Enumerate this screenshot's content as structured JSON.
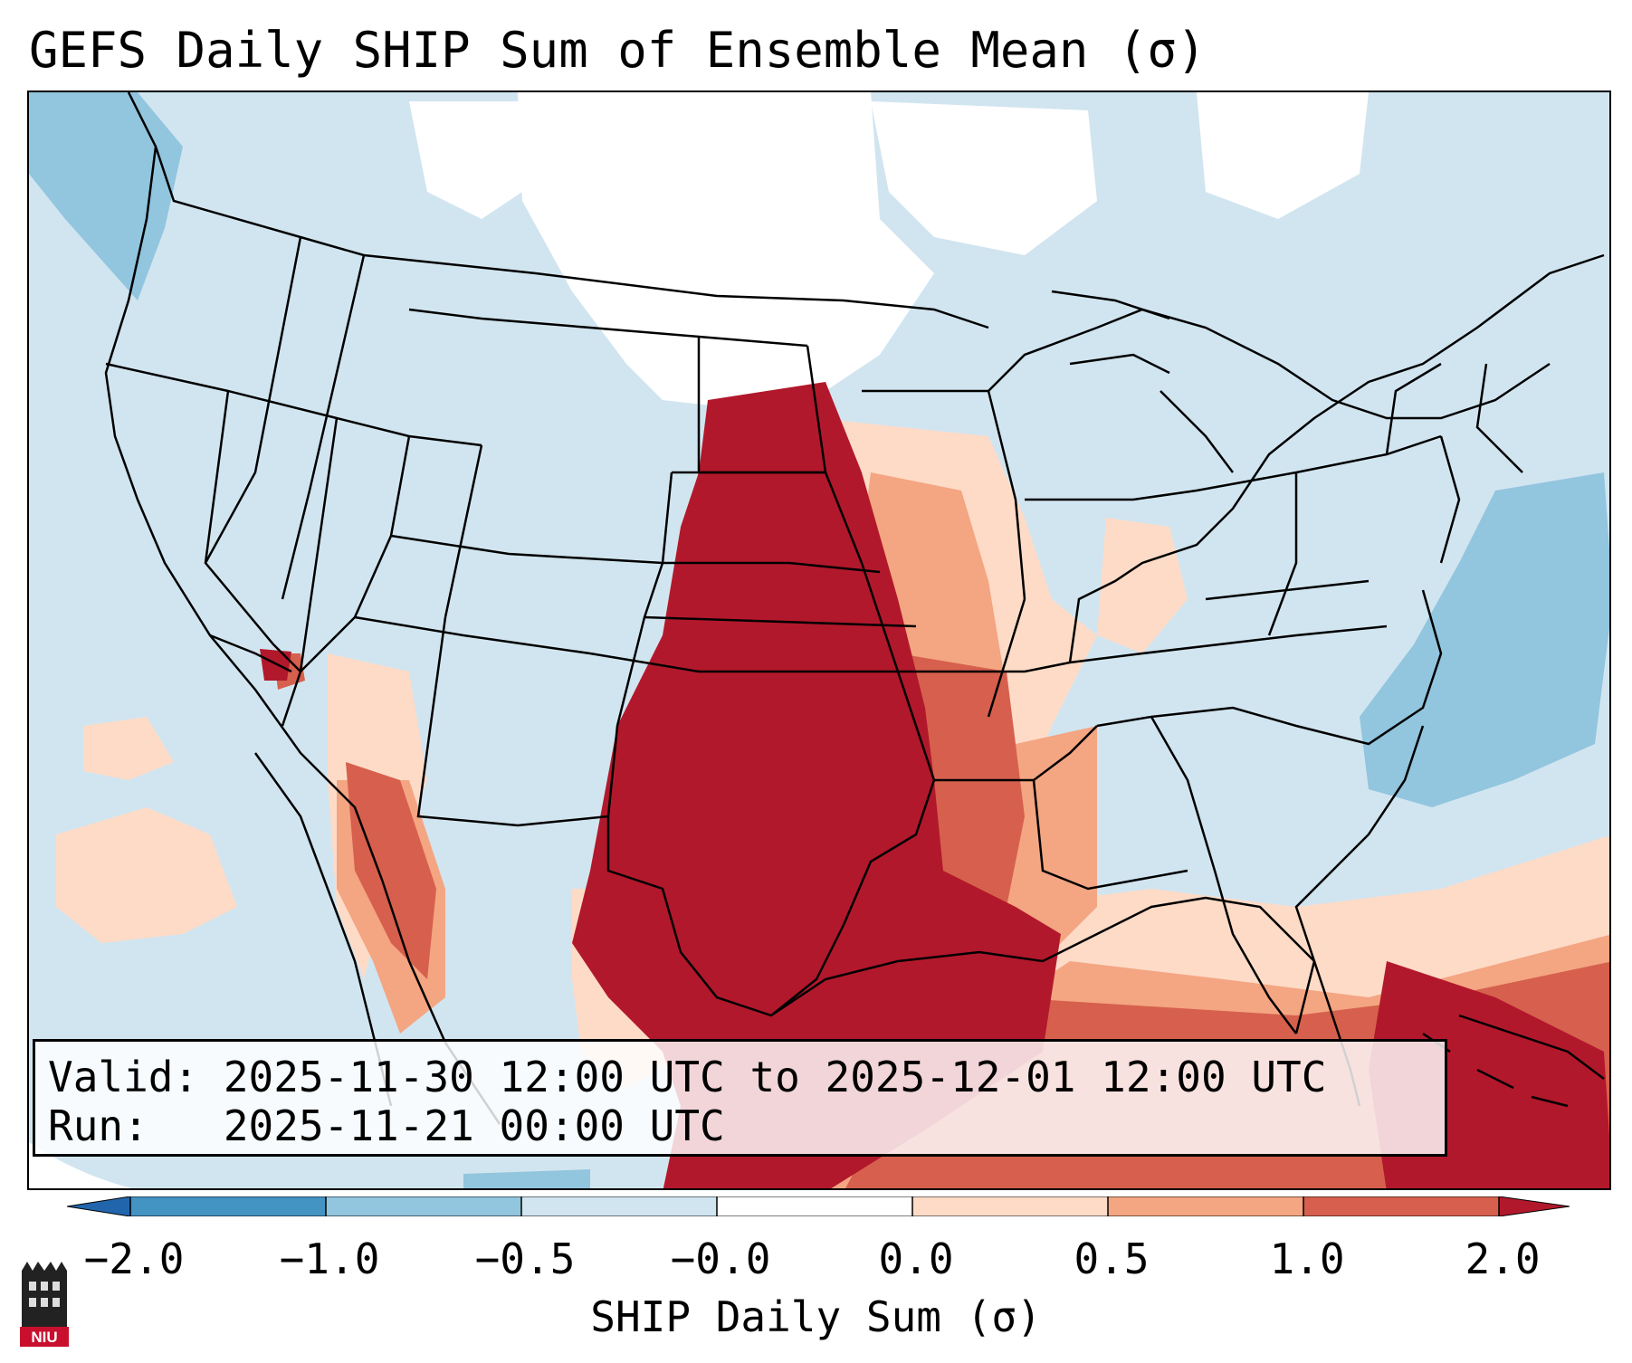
{
  "title": "GEFS Daily SHIP Sum of Ensemble Mean (σ)",
  "info": {
    "valid_line": "Valid: 2025-11-30 12:00 UTC to 2025-12-01 12:00 UTC",
    "run_line": "Run:   2025-11-21 00:00 UTC"
  },
  "colorbar": {
    "label": "SHIP Daily Sum (σ)",
    "ticks": [
      "−2.0",
      "−1.0",
      "−0.5",
      "−0.0",
      "0.0",
      "0.5",
      "1.0",
      "2.0"
    ],
    "colors": {
      "below_min": "#2166ac",
      "lt_-1": "#4393c3",
      "-1_-0.5": "#92c5de",
      "-0.5_0": "#d1e5f0",
      "zero": "#ffffff",
      "0_0.5": "#fddbc7",
      "0.5_1": "#f4a582",
      "1_2": "#d6604d",
      "gt_2": "#b2182b"
    }
  },
  "logo": {
    "text": "NIU",
    "color": "#c8102e"
  }
}
